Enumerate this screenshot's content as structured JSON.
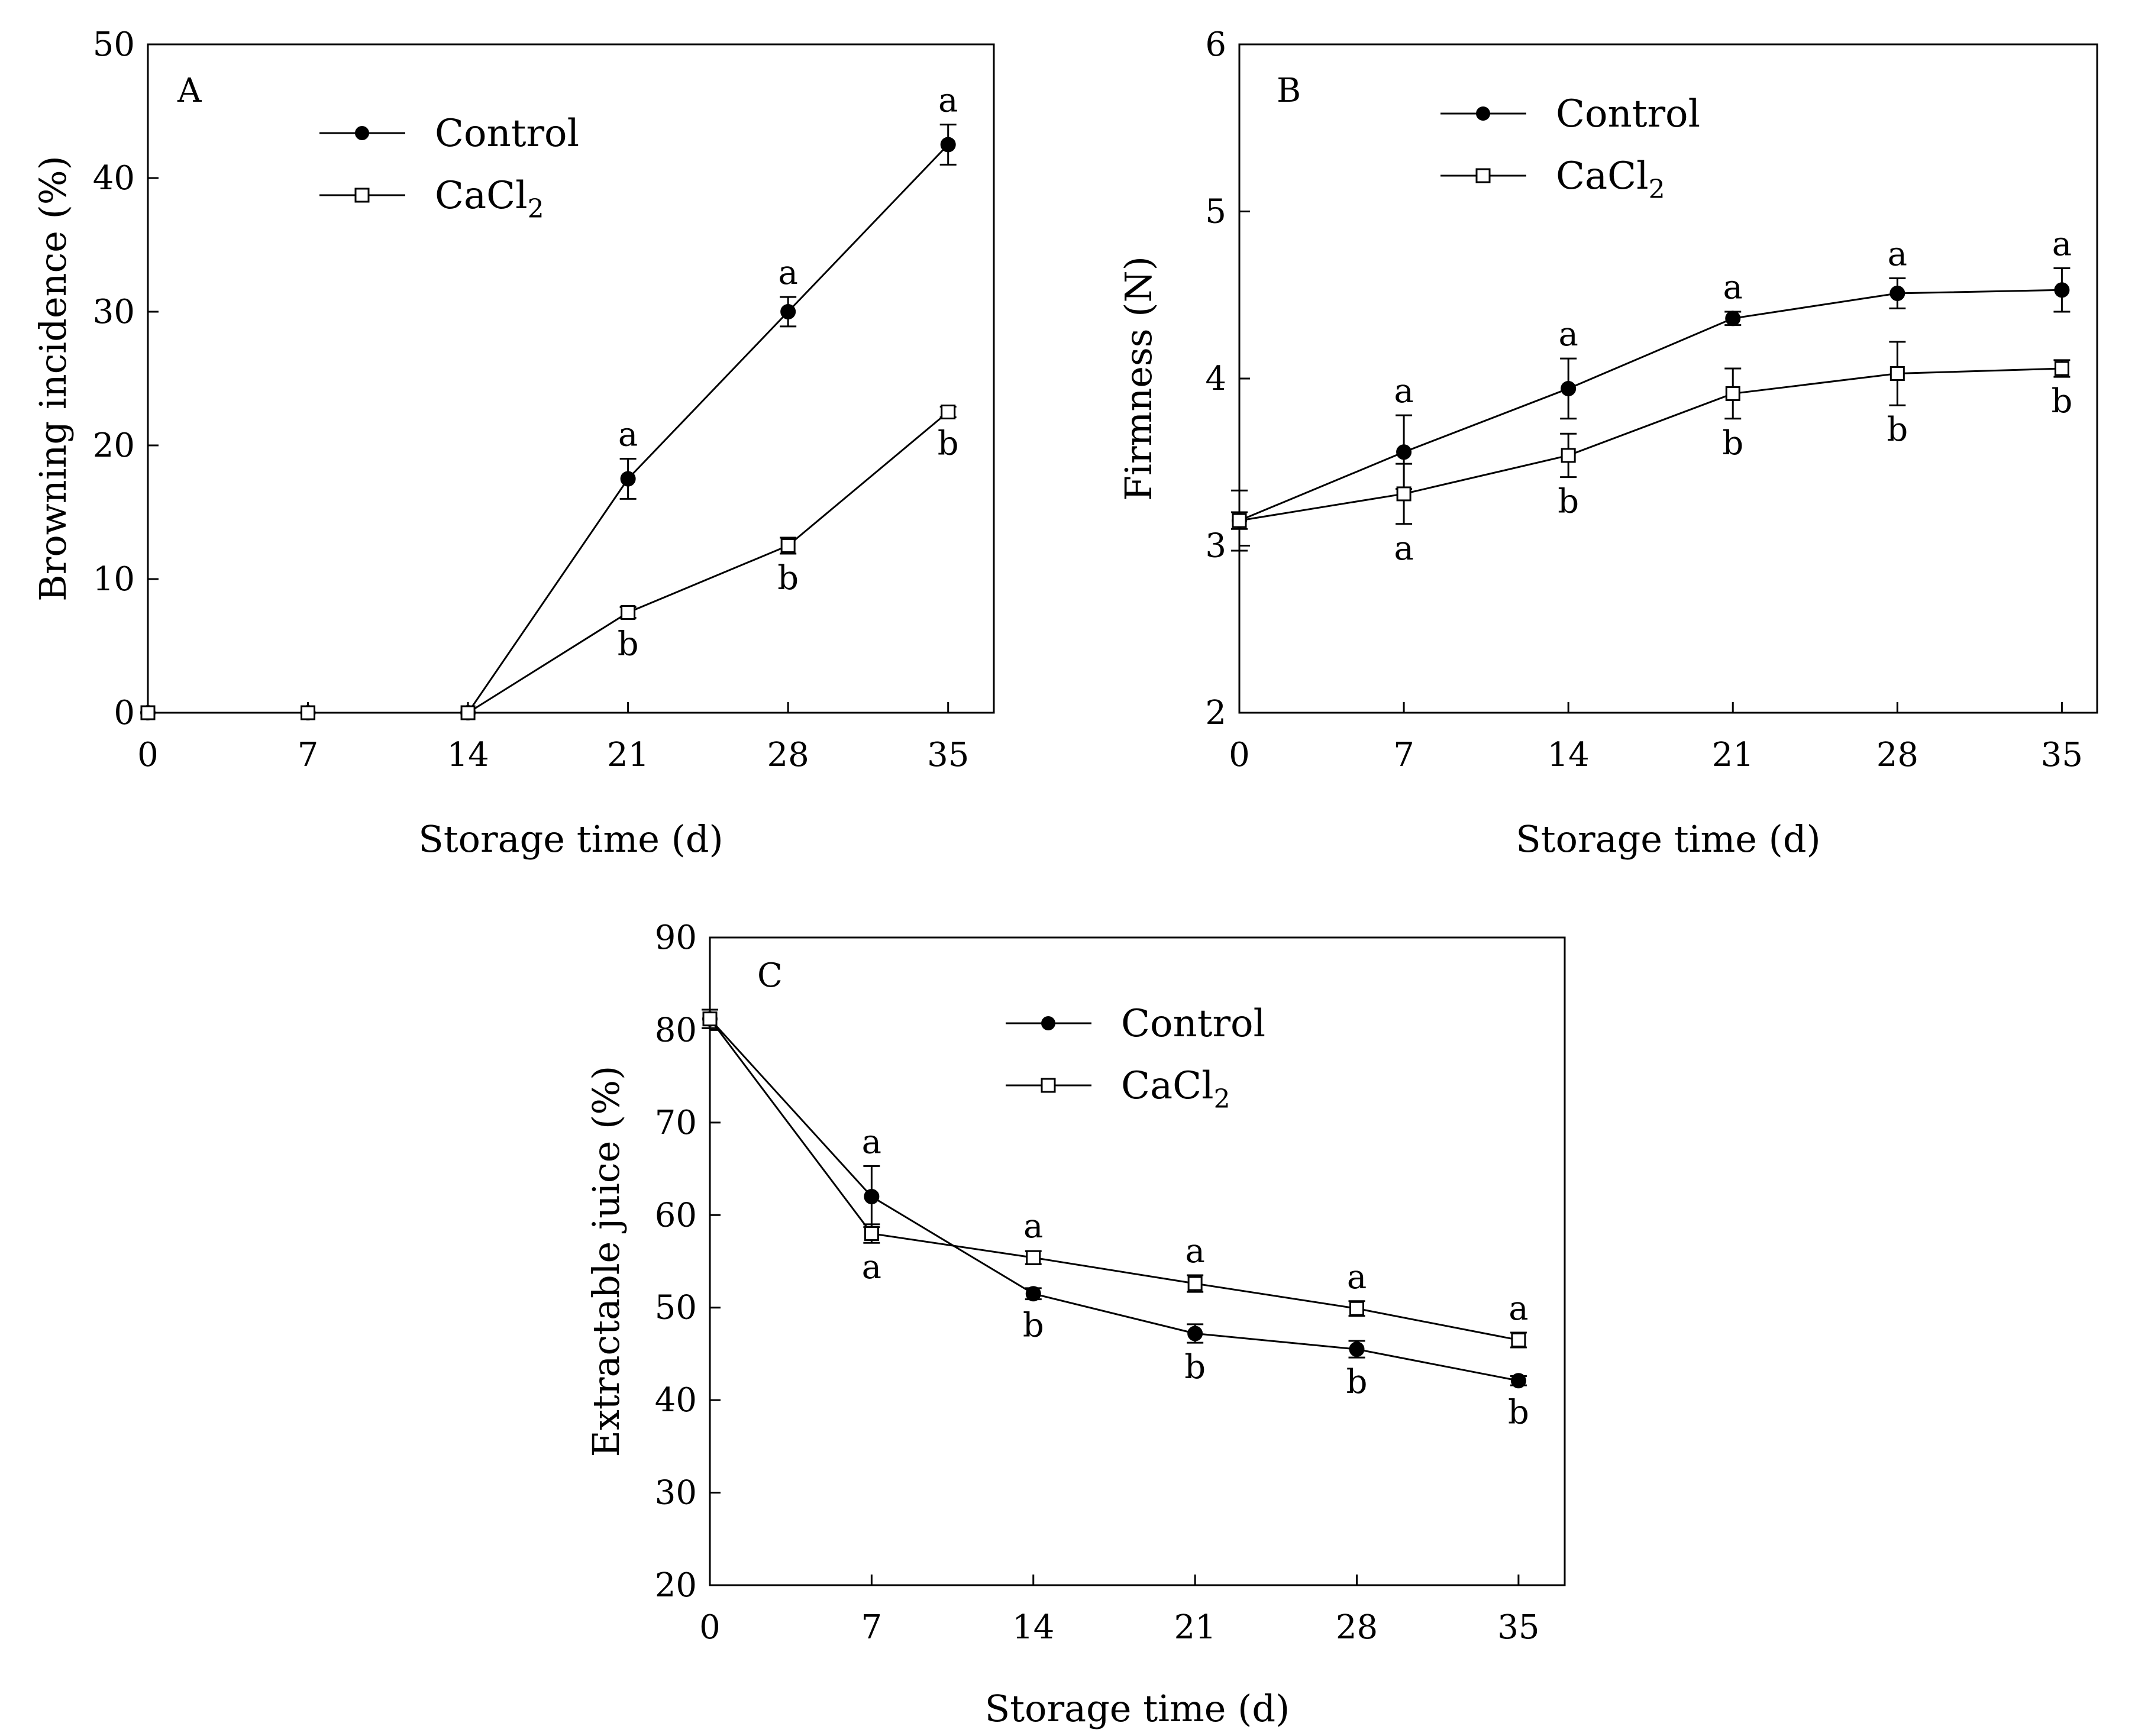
{
  "chart_data": [
    {
      "type": "line",
      "panel": "A",
      "xlabel": "Storage time (d)",
      "ylabel": "Browning incidence (%)",
      "x": [
        0,
        7,
        14,
        21,
        28,
        35
      ],
      "xlim": [
        0,
        37
      ],
      "ylim": [
        0,
        50
      ],
      "yticks": [
        0,
        10,
        20,
        30,
        40,
        50
      ],
      "legend": "top-left",
      "series": [
        {
          "name": "Control",
          "marker": "filled-circle",
          "values": [
            0,
            0,
            0,
            17.5,
            30,
            42.5
          ],
          "err": [
            0,
            0,
            0,
            1.5,
            1.1,
            1.5
          ],
          "letters": [
            "",
            "",
            "",
            "a",
            "a",
            "a"
          ],
          "letter_pos": "above"
        },
        {
          "name": "CaCl",
          "name_sub": "2",
          "marker": "open-square",
          "values": [
            0,
            0,
            0,
            7.5,
            12.5,
            22.5
          ],
          "err": [
            0,
            0,
            0,
            0.4,
            0.6,
            0.4
          ],
          "letters": [
            "",
            "",
            "",
            "b",
            "b",
            "b"
          ],
          "letter_pos": "below"
        }
      ]
    },
    {
      "type": "line",
      "panel": "B",
      "xlabel": "Storage time (d)",
      "ylabel": "Firmness (N)",
      "x": [
        0,
        7,
        14,
        21,
        28,
        35
      ],
      "xlim": [
        0,
        36.5
      ],
      "ylim": [
        2,
        6
      ],
      "yticks": [
        2,
        3,
        4,
        5,
        6
      ],
      "legend": "top-left",
      "series": [
        {
          "name": "Control",
          "marker": "filled-circle",
          "values": [
            3.15,
            3.56,
            3.94,
            4.36,
            4.51,
            4.53
          ],
          "err": [
            0.18,
            0.22,
            0.18,
            0.04,
            0.09,
            0.13
          ],
          "letters": [
            "",
            "a",
            "a",
            "a",
            "a",
            "a"
          ],
          "letter_pos": "above"
        },
        {
          "name": "CaCl",
          "name_sub": "2",
          "marker": "open-square",
          "values": [
            3.15,
            3.31,
            3.54,
            3.91,
            4.03,
            4.06
          ],
          "err": [
            0.05,
            0.18,
            0.13,
            0.15,
            0.19,
            0.05
          ],
          "letters": [
            "",
            "a",
            "b",
            "b",
            "b",
            "b"
          ],
          "letter_pos": "below"
        }
      ]
    },
    {
      "type": "line",
      "panel": "C",
      "xlabel": "Storage time (d)",
      "ylabel": "Extractable juice (%)",
      "x": [
        0,
        7,
        14,
        21,
        28,
        35
      ],
      "xlim": [
        0,
        37
      ],
      "ylim": [
        20,
        90
      ],
      "yticks": [
        20,
        30,
        40,
        50,
        60,
        70,
        80,
        90
      ],
      "legend": "top-center",
      "series": [
        {
          "name": "Control",
          "marker": "filled-circle",
          "values": [
            81.2,
            62,
            51.5,
            47.2,
            45.5,
            42.1
          ],
          "err": [
            1.0,
            3.3,
            0.6,
            1.0,
            0.9,
            0.5
          ],
          "letters": [
            "",
            "a",
            "b",
            "b",
            "b",
            "b"
          ],
          "letter_pos": "mixed"
        },
        {
          "name": "CaCl",
          "name_sub": "2",
          "marker": "open-square",
          "values": [
            81.2,
            58,
            55.4,
            52.6,
            49.9,
            46.5
          ],
          "err": [
            1.0,
            1.0,
            0.7,
            0.9,
            0.8,
            0.8
          ],
          "letters": [
            "",
            "a",
            "a",
            "a",
            "a",
            "a"
          ],
          "letter_pos": "mixed"
        }
      ]
    }
  ]
}
